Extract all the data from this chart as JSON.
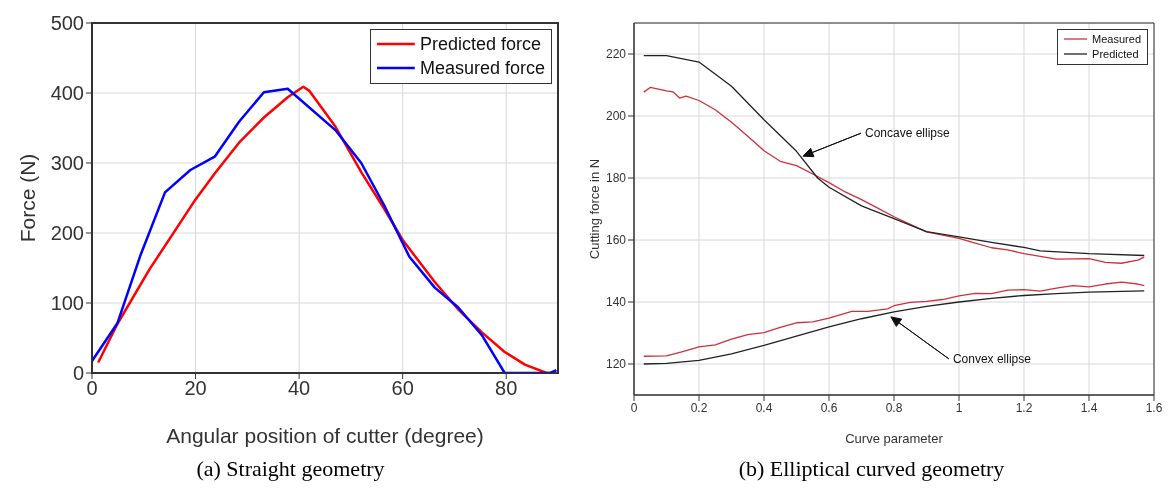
{
  "chart_data": [
    {
      "type": "line",
      "xlabel": "Angular position of cutter (degree)",
      "ylabel": "Force (N)",
      "xlim": [
        0,
        90
      ],
      "xticks": [
        0,
        20,
        40,
        60,
        80
      ],
      "ylim": [
        0,
        500
      ],
      "yticks": [
        0,
        100,
        200,
        300,
        400,
        500
      ],
      "grid": true,
      "legend": "top right",
      "line_style": "solid",
      "annotations": [
        "(a) Straight geometry"
      ],
      "series": [
        {
          "name": "Predicted force",
          "color": "#ff0000",
          "x": [
            1.2,
            4.9,
            11.1,
            20,
            23.7,
            28.4,
            33.2,
            37.8,
            40.8,
            42,
            47,
            52,
            56.4,
            60,
            66.2,
            70.7,
            75.3,
            79.7,
            83.6,
            87.8,
            89.7
          ],
          "values": [
            15,
            70,
            148,
            248,
            285,
            329,
            365,
            394,
            409,
            403,
            352,
            287,
            235,
            190,
            130,
            91,
            58,
            30,
            12,
            0,
            0
          ]
        },
        {
          "name": "Measured force",
          "color": "#0000ff",
          "x": [
            0,
            4.9,
            9.4,
            14.1,
            19,
            23.7,
            28.4,
            33.2,
            37.8,
            47,
            52,
            56.4,
            61.3,
            66.2,
            70.7,
            75.3,
            79.7,
            88.5,
            89.7
          ],
          "values": [
            17,
            71,
            169,
            258,
            290,
            309,
            359,
            401,
            406,
            347,
            300,
            240,
            166,
            122,
            94,
            54,
            0,
            0,
            4
          ]
        }
      ]
    },
    {
      "type": "line",
      "xlabel": "Curve parameter",
      "ylabel": "Cutting force in N",
      "xlim": [
        0,
        1.6
      ],
      "xticks": [
        0,
        0.2,
        0.4,
        0.6,
        0.8,
        1,
        1.2,
        1.4,
        1.6
      ],
      "ylim": [
        110,
        230
      ],
      "yticks": [
        120,
        140,
        160,
        180,
        200,
        220
      ],
      "grid": true,
      "legend": "top right",
      "line_style": "solid",
      "annotations": [
        "Concave ellipse",
        "Convex ellipse",
        "(b) Elliptical curved geometry"
      ],
      "series": [
        {
          "name": "Measured",
          "color": "#d0303a",
          "x": [
            0.03,
            0.05,
            0.1,
            0.12,
            0.14,
            0.16,
            0.2,
            0.25,
            0.3,
            0.35,
            0.4,
            0.45,
            0.5,
            0.55,
            0.6,
            0.65,
            0.7,
            0.75,
            0.8,
            0.9,
            1.0,
            1.05,
            1.1,
            1.15,
            1.2,
            1.3,
            1.4,
            1.45,
            1.5,
            1.55,
            1.57
          ],
          "values": [
            207.7,
            209.2,
            208.1,
            207.8,
            205.8,
            206.4,
            205,
            202,
            198,
            193.5,
            188.8,
            185.4,
            184,
            181.3,
            178.5,
            175.5,
            173,
            170.3,
            167.5,
            162.6,
            160.5,
            159,
            157.5,
            156.8,
            155.6,
            153.8,
            154,
            152.8,
            152.5,
            153.5,
            154.5
          ]
        },
        {
          "name": "Predicted",
          "color": "#222222",
          "x": [
            0.03,
            0.1,
            0.2,
            0.3,
            0.35,
            0.4,
            0.5,
            0.565,
            0.6,
            0.7,
            0.8,
            0.9,
            1.0,
            1.1,
            1.2,
            1.25,
            1.4,
            1.57
          ],
          "values": [
            219.5,
            219.5,
            217.4,
            209.6,
            204.2,
            198.8,
            188.6,
            180,
            177,
            171,
            166.9,
            162.7,
            161,
            159.2,
            157.6,
            156.5,
            155.6,
            155
          ]
        },
        {
          "color": "#d0303a",
          "x": [
            0.03,
            0.1,
            0.15,
            0.2,
            0.25,
            0.3,
            0.35,
            0.4,
            0.45,
            0.5,
            0.55,
            0.6,
            0.67,
            0.72,
            0.78,
            0.8,
            0.85,
            0.9,
            0.95,
            1.0,
            1.05,
            1.1,
            1.15,
            1.2,
            1.25,
            1.3,
            1.35,
            1.4,
            1.45,
            1.5,
            1.55,
            1.57
          ],
          "values": [
            122.5,
            122.6,
            124,
            125.5,
            126.2,
            128,
            129.5,
            130.1,
            131.8,
            133.3,
            133.6,
            134.8,
            137,
            137,
            137.8,
            138.8,
            139.9,
            140.2,
            140.8,
            142,
            142.8,
            142.7,
            143.8,
            144,
            143.5,
            144.5,
            145.3,
            144.9,
            145.8,
            146.4,
            145.8,
            145.3
          ]
        },
        {
          "color": "#222222",
          "x": [
            0.03,
            0.1,
            0.2,
            0.3,
            0.4,
            0.5,
            0.6,
            0.7,
            0.8,
            0.9,
            1.0,
            1.1,
            1.2,
            1.3,
            1.4,
            1.57
          ],
          "values": [
            120,
            120.2,
            121.2,
            123.3,
            126,
            129,
            132,
            134.6,
            136.8,
            138.6,
            140,
            141.2,
            142.1,
            142.7,
            143.2,
            143.6
          ]
        }
      ]
    }
  ]
}
